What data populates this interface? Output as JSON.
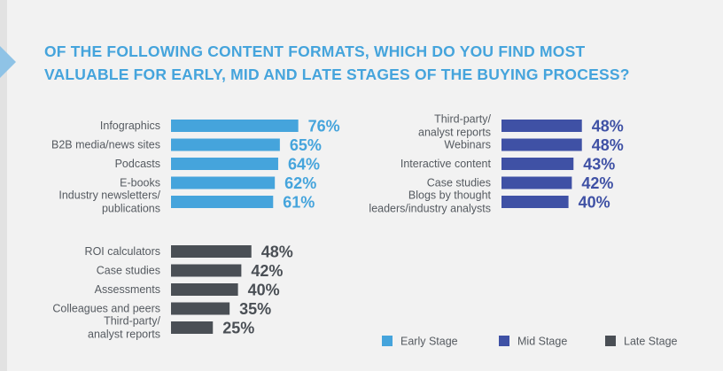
{
  "title_lines": [
    "OF THE FOLLOWING CONTENT FORMATS, WHICH DO YOU FIND MOST",
    "VALUABLE FOR EARLY, MID AND LATE STAGES OF THE BUYING PROCESS?"
  ],
  "colors": {
    "early": "#45a4dc",
    "mid": "#3f51a5",
    "late": "#4a4f55",
    "title": "#45a4dc"
  },
  "legend": [
    {
      "label": "Early Stage",
      "series": "early"
    },
    {
      "label": "Mid Stage",
      "series": "mid"
    },
    {
      "label": "Late Stage",
      "series": "late"
    }
  ],
  "chart_data": [
    {
      "type": "bar",
      "orientation": "horizontal",
      "series_name": "Early Stage",
      "color_key": "early",
      "xlim": [
        0,
        100
      ],
      "categories": [
        [
          "Infographics"
        ],
        [
          "B2B media/news sites"
        ],
        [
          "Podcasts"
        ],
        [
          "E-books"
        ],
        [
          "Industry newsletters/",
          "publications"
        ]
      ],
      "values": [
        76,
        65,
        64,
        62,
        61
      ],
      "value_labels": [
        "76%",
        "65%",
        "64%",
        "62%",
        "61%"
      ]
    },
    {
      "type": "bar",
      "orientation": "horizontal",
      "series_name": "Mid Stage",
      "color_key": "mid",
      "xlim": [
        0,
        100
      ],
      "categories": [
        [
          "Third-party/",
          "analyst reports"
        ],
        [
          "Webinars"
        ],
        [
          "Interactive content"
        ],
        [
          "Case studies"
        ],
        [
          "Blogs by thought",
          "leaders/industry analysts"
        ]
      ],
      "values": [
        48,
        48,
        43,
        42,
        40
      ],
      "value_labels": [
        "48%",
        "48%",
        "43%",
        "42%",
        "40%"
      ]
    },
    {
      "type": "bar",
      "orientation": "horizontal",
      "series_name": "Late Stage",
      "color_key": "late",
      "xlim": [
        0,
        100
      ],
      "categories": [
        [
          "ROI calculators"
        ],
        [
          "Case studies"
        ],
        [
          "Assessments"
        ],
        [
          "Colleagues and peers"
        ],
        [
          "Third-party/",
          "analyst reports"
        ]
      ],
      "values": [
        48,
        42,
        40,
        35,
        25
      ],
      "value_labels": [
        "48%",
        "42%",
        "40%",
        "35%",
        "25%"
      ]
    }
  ]
}
